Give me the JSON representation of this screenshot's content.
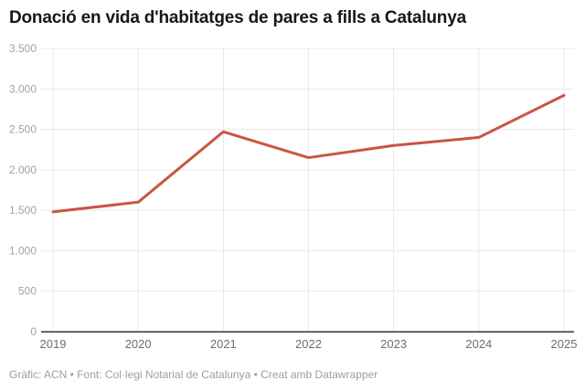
{
  "title": "Donació en vida d'habitatges de pares a fills a Catalunya",
  "footer": "Gràfic: ACN • Font: Col·legi Notarial de Catalunya • Creat amb Datawrapper",
  "colors": {
    "line": "#c9563f",
    "grid": "#e9e9e9",
    "axis": "#333333",
    "y_tick_label": "#a3a3a3",
    "x_tick_label": "#6e6e6e",
    "title": "#171717",
    "footer": "#9e9e9e",
    "background": "#ffffff"
  },
  "chart_data": {
    "type": "line",
    "title": "Donació en vida d'habitatges de pares a fills a Catalunya",
    "x": [
      2019,
      2020,
      2021,
      2022,
      2023,
      2024,
      2025
    ],
    "x_tick_labels": [
      "2019",
      "2020",
      "2021",
      "2022",
      "2023",
      "2024",
      "2025"
    ],
    "values": [
      1480,
      1600,
      2470,
      2150,
      2300,
      2400,
      2920
    ],
    "xlabel": "",
    "ylabel": "",
    "ylim": [
      0,
      3500
    ],
    "y_ticks": [
      0,
      500,
      1000,
      1500,
      2000,
      2500,
      3000,
      3500
    ],
    "y_tick_labels": [
      "0",
      "500",
      "1.000",
      "1.500",
      "2.000",
      "2.500",
      "3.000",
      "3.500"
    ],
    "grid": "horizontal and vertical, light gray",
    "legend": "none",
    "line_color": "#c9563f",
    "line_width": 3
  }
}
